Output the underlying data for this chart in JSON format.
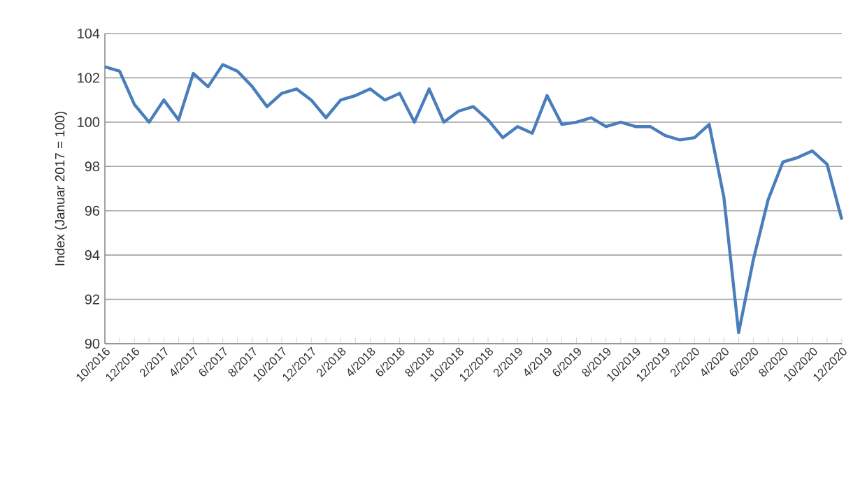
{
  "chart_data": {
    "type": "line",
    "ylabel": "Index (Januar 2017 = 100)",
    "categories": [
      "10/2016",
      null,
      "12/2016",
      null,
      "2/2017",
      null,
      "4/2017",
      null,
      "6/2017",
      null,
      "8/2017",
      null,
      "10/2017",
      null,
      "12/2017",
      null,
      "2/2018",
      null,
      "4/2018",
      null,
      "6/2018",
      null,
      "8/2018",
      null,
      "10/2018",
      null,
      "12/2018",
      null,
      "2/2019",
      null,
      "4/2019",
      null,
      "6/2019",
      null,
      "8/2019",
      null,
      "10/2019",
      null,
      "12/2019",
      null,
      "2/2020",
      null,
      "4/2020",
      null,
      "6/2020",
      null,
      "8/2020",
      null,
      "10/2020",
      null,
      "12/2020"
    ],
    "values": [
      102.5,
      102.3,
      100.8,
      100.0,
      101.0,
      100.1,
      102.2,
      101.6,
      102.6,
      102.3,
      101.6,
      100.7,
      101.3,
      101.5,
      101.0,
      100.2,
      101.0,
      101.2,
      101.5,
      101.0,
      101.3,
      100.0,
      101.5,
      100.0,
      100.5,
      100.7,
      100.1,
      99.3,
      99.8,
      99.5,
      101.2,
      99.9,
      100.0,
      100.2,
      99.8,
      100.0,
      99.8,
      99.8,
      99.4,
      99.2,
      99.3,
      99.9,
      96.6,
      90.5,
      93.8,
      96.5,
      98.2,
      98.4,
      98.7,
      98.1,
      95.6
    ],
    "color": "#4a7ebb",
    "ylim": [
      90,
      104
    ],
    "yticks": [
      90,
      92,
      94,
      96,
      98,
      100,
      102,
      104
    ],
    "grid": "y",
    "marker": "none",
    "line_style": "solid"
  }
}
